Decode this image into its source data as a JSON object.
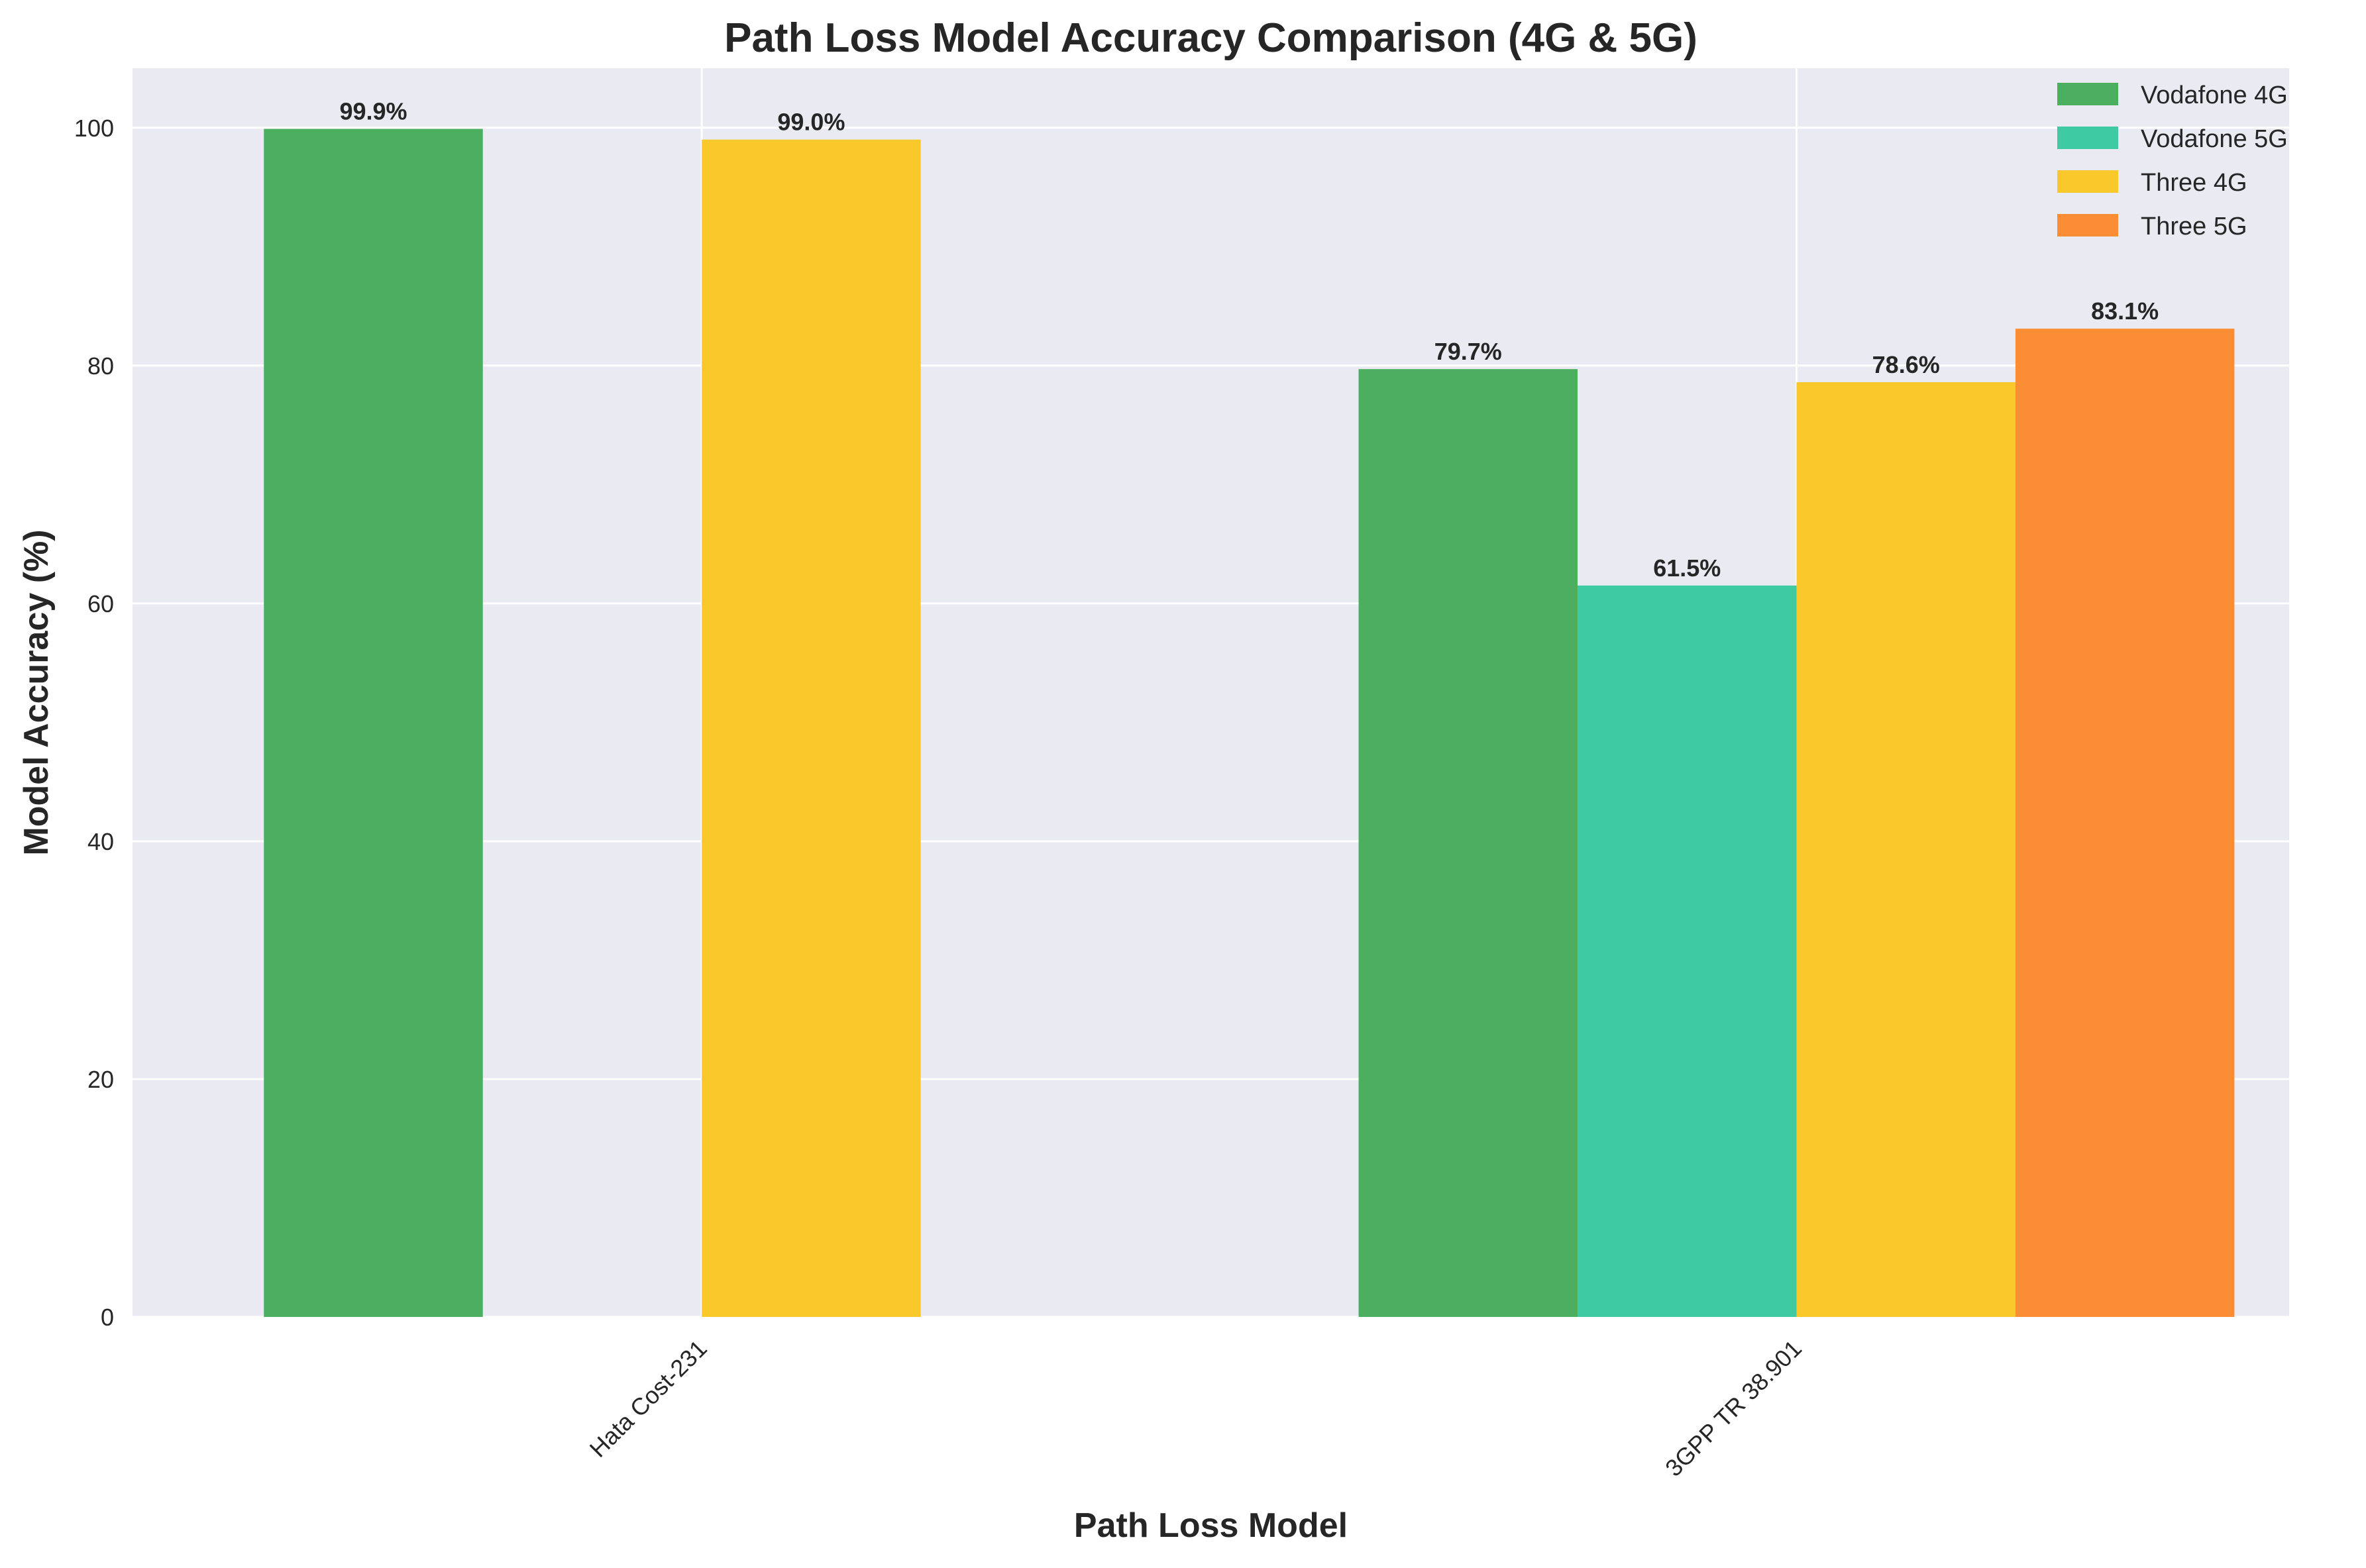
{
  "chart_data": {
    "type": "bar",
    "title": "Path Loss Model Accuracy Comparison (4G & 5G)",
    "xlabel": "Path Loss Model",
    "ylabel": "Model Accuracy (%)",
    "categories": [
      "Hata Cost-231",
      "3GPP TR 38.901"
    ],
    "series": [
      {
        "name": "Vodafone 4G",
        "color": "#4caf5f",
        "values": [
          99.9,
          79.7
        ]
      },
      {
        "name": "Vodafone 5G",
        "color": "#3ecba3",
        "values": [
          null,
          61.5
        ]
      },
      {
        "name": "Three 4G",
        "color": "#f9c82a",
        "values": [
          99.0,
          78.6
        ]
      },
      {
        "name": "Three 5G",
        "color": "#fb8e35",
        "values": [
          null,
          83.1
        ]
      }
    ],
    "data_labels": [
      [
        "99.9%",
        "79.7%"
      ],
      [
        null,
        "61.5%"
      ],
      [
        "99.0%",
        "78.6%"
      ],
      [
        null,
        "83.1%"
      ]
    ],
    "yticks": [
      "0",
      "20",
      "40",
      "60",
      "80",
      "100"
    ],
    "ylim": [
      0,
      105
    ],
    "grid": true,
    "legend_position": "top-right",
    "plot_background": "#eaeaf2"
  }
}
